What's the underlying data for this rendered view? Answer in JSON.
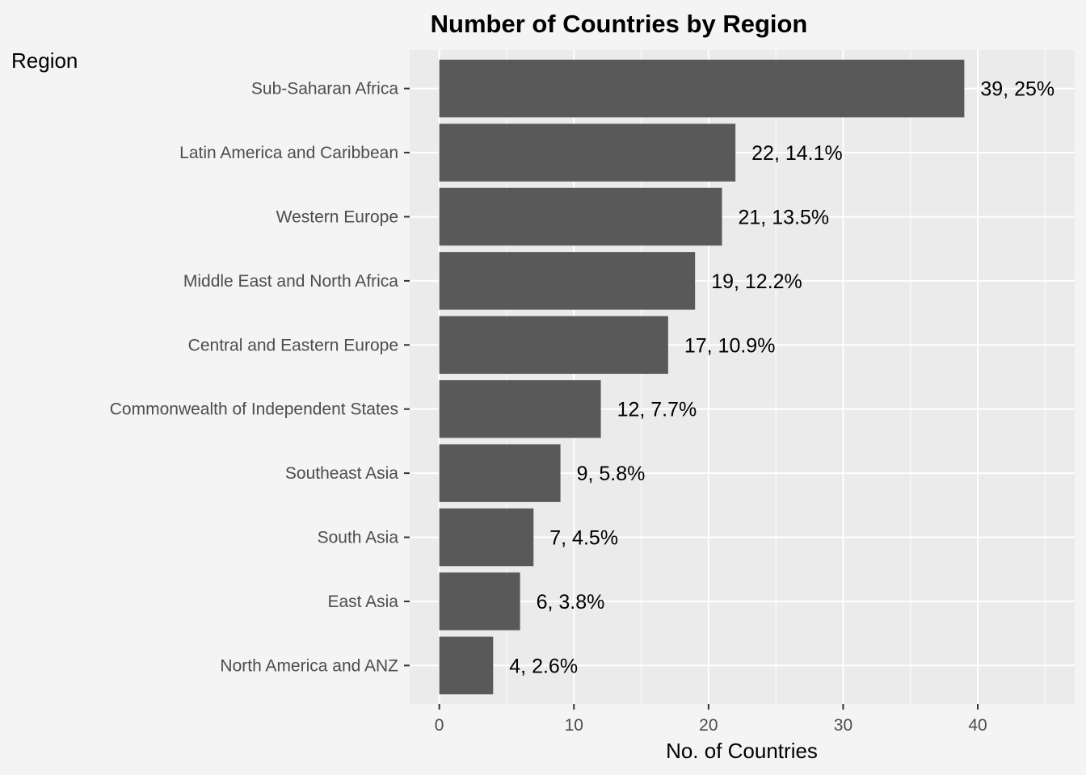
{
  "chart_data": {
    "type": "bar",
    "orientation": "horizontal",
    "title": "Number of Countries by Region",
    "legend_title": "Region",
    "xlabel": "No. of Countries",
    "ylabel": "",
    "xlim": [
      -2.2,
      47.2
    ],
    "x_ticks": [
      0,
      10,
      20,
      30,
      40
    ],
    "x_tick_labels": [
      "0",
      "10",
      "20",
      "30",
      "40"
    ],
    "grid": true,
    "categories": [
      "Sub-Saharan Africa",
      "Latin America and Caribbean",
      "Western Europe",
      "Middle East and North Africa",
      "Central and Eastern Europe",
      "Commonwealth of Independent States",
      "Southeast Asia",
      "South Asia",
      "East Asia",
      "North America and ANZ"
    ],
    "values": [
      39,
      22,
      21,
      19,
      17,
      12,
      9,
      7,
      6,
      4
    ],
    "data_labels": [
      "39, 25%",
      "22, 14.1%",
      "21, 13.5%",
      "19, 12.2%",
      "17, 10.9%",
      "12, 7.7%",
      "9, 5.8%",
      "7, 4.5%",
      "6, 3.8%",
      "4, 2.6%"
    ],
    "colors": {
      "background": "#f4f4f4",
      "panel": "#ebebeb",
      "grid": "#ffffff",
      "bar": "#595959"
    }
  }
}
